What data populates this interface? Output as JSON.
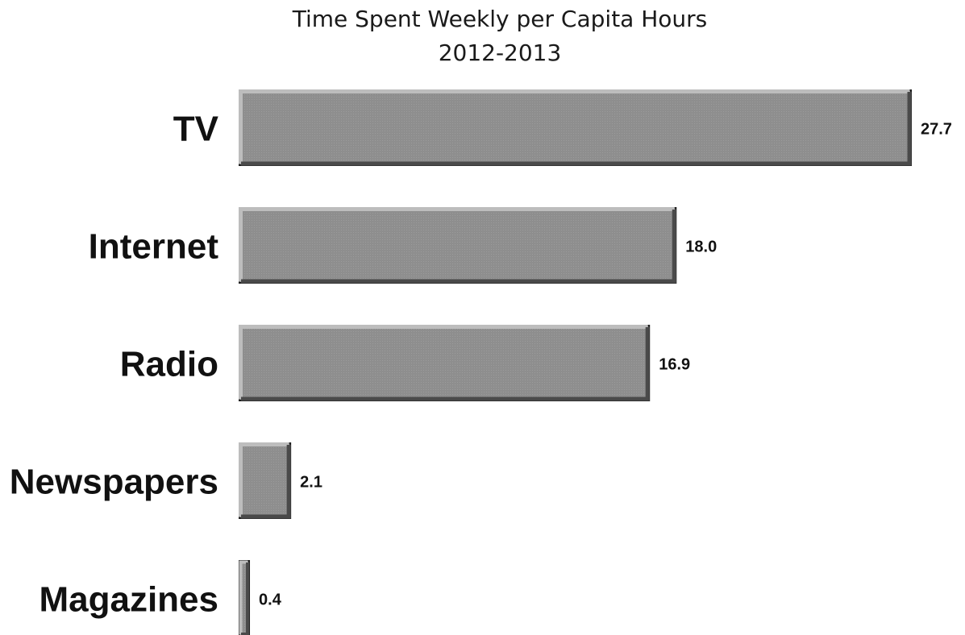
{
  "chart_data": {
    "type": "bar",
    "orientation": "horizontal",
    "title": "Time Spent Weekly per Capita Hours",
    "subtitle": "2012-2013",
    "categories": [
      "TV",
      "Internet",
      "Radio",
      "Newspapers",
      "Magazines"
    ],
    "values": [
      27.7,
      18.0,
      16.9,
      2.1,
      0.4
    ],
    "value_labels": [
      "27.7",
      "18.0",
      "16.9",
      "2.1",
      "0.4"
    ],
    "xlim": [
      0,
      27.7
    ],
    "grid": false,
    "legend": "none",
    "colors": {
      "bar_fill": "#8c8c8c",
      "bar_highlight": "#bdbdbd",
      "bar_shadow": "#4a4a4a",
      "text": "#111111"
    }
  }
}
